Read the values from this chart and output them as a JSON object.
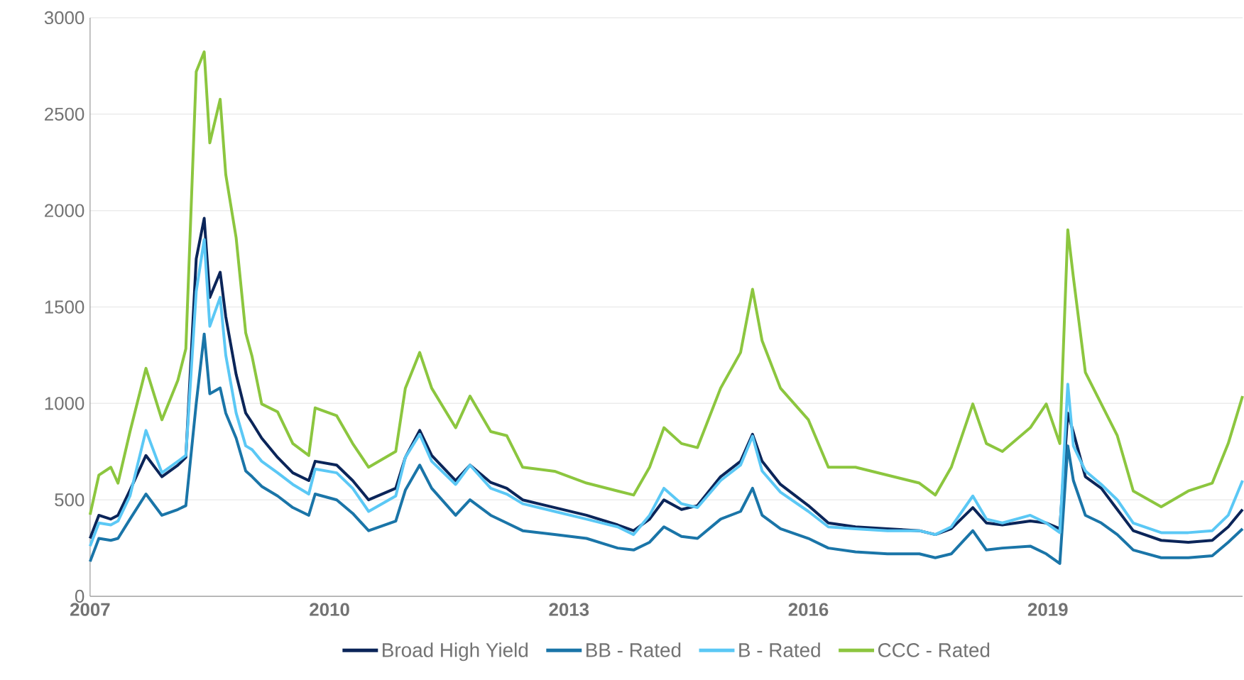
{
  "chart_data": {
    "type": "line",
    "x": [
      2007.0,
      2007.11,
      2007.26,
      2007.35,
      2007.5,
      2007.7,
      2007.9,
      2008.1,
      2008.2,
      2008.33,
      2008.43,
      2008.5,
      2008.63,
      2008.7,
      2008.83,
      2008.95,
      2009.03,
      2009.15,
      2009.35,
      2009.54,
      2009.74,
      2009.82,
      2010.09,
      2010.29,
      2010.49,
      2010.83,
      2010.95,
      2011.13,
      2011.28,
      2011.58,
      2011.76,
      2012.02,
      2012.22,
      2012.42,
      2012.82,
      2013.22,
      2013.61,
      2013.81,
      2014.01,
      2014.19,
      2014.41,
      2014.61,
      2014.9,
      2015.15,
      2015.3,
      2015.42,
      2015.65,
      2016.0,
      2016.25,
      2016.59,
      2016.99,
      2017.39,
      2017.59,
      2017.79,
      2018.06,
      2018.23,
      2018.43,
      2018.78,
      2018.98,
      2019.15,
      2019.25,
      2019.32,
      2019.47,
      2019.67,
      2019.87,
      2020.07,
      2020.42,
      2020.76,
      2021.06,
      2021.26,
      2021.44
    ],
    "series": [
      {
        "name": "Broad High Yield",
        "color": "#0b2559",
        "values": [
          300,
          420,
          400,
          420,
          550,
          730,
          620,
          680,
          720,
          1750,
          1960,
          1550,
          1680,
          1450,
          1150,
          950,
          900,
          820,
          720,
          640,
          600,
          700,
          680,
          600,
          500,
          560,
          720,
          860,
          730,
          600,
          680,
          590,
          560,
          500,
          460,
          420,
          370,
          340,
          400,
          500,
          450,
          470,
          620,
          700,
          840,
          700,
          580,
          470,
          380,
          360,
          350,
          340,
          320,
          350,
          460,
          380,
          370,
          390,
          380,
          350,
          950,
          850,
          620,
          560,
          450,
          340,
          290,
          280,
          290,
          360,
          450
        ]
      },
      {
        "name": "BB - Rated",
        "color": "#1a75a8",
        "values": [
          180,
          300,
          290,
          300,
          400,
          530,
          420,
          450,
          470,
          1000,
          1360,
          1050,
          1080,
          950,
          820,
          650,
          620,
          570,
          520,
          460,
          420,
          530,
          500,
          430,
          340,
          390,
          550,
          680,
          560,
          420,
          500,
          420,
          380,
          340,
          320,
          300,
          250,
          240,
          280,
          360,
          310,
          300,
          400,
          440,
          560,
          420,
          350,
          300,
          250,
          230,
          220,
          220,
          200,
          220,
          340,
          240,
          250,
          260,
          220,
          170,
          780,
          600,
          420,
          380,
          320,
          240,
          200,
          200,
          210,
          280,
          350
        ]
      },
      {
        "name": "B - Rated",
        "color": "#5bc8f5",
        "values": [
          260,
          380,
          370,
          390,
          520,
          860,
          640,
          700,
          730,
          1580,
          1850,
          1400,
          1550,
          1250,
          950,
          780,
          760,
          700,
          640,
          580,
          530,
          660,
          640,
          560,
          440,
          520,
          720,
          840,
          700,
          580,
          680,
          560,
          530,
          480,
          440,
          400,
          360,
          320,
          420,
          560,
          480,
          460,
          600,
          680,
          830,
          650,
          540,
          440,
          360,
          350,
          340,
          340,
          320,
          360,
          520,
          400,
          380,
          420,
          380,
          330,
          1100,
          780,
          650,
          580,
          500,
          380,
          330,
          330,
          340,
          420,
          600
        ]
      },
      {
        "name": "CCC - Rated",
        "color": "#8cc63f",
        "values": [
          423,
          628,
          669,
          587,
          853,
          1182,
          915,
          1120,
          1284,
          2720,
          2823,
          2351,
          2577,
          2187,
          1859,
          1366,
          1243,
          997,
          956,
          792,
          730,
          977,
          936,
          792,
          669,
          751,
          1079,
          1264,
          1079,
          874,
          1038,
          854,
          833,
          669,
          648,
          587,
          546,
          525,
          669,
          874,
          792,
          771,
          1079,
          1264,
          1592,
          1325,
          1079,
          915,
          669,
          669,
          628,
          587,
          525,
          669,
          997,
          792,
          751,
          874,
          997,
          792,
          1900,
          1654,
          1161,
          997,
          833,
          546,
          464,
          546,
          587,
          792,
          1038
        ]
      }
    ],
    "xlim": [
      2007,
      2021.44
    ],
    "xticks": [
      2007,
      2010,
      2013,
      2016,
      2019
    ],
    "ylim": [
      0,
      3000
    ],
    "yticks": [
      0,
      500,
      1000,
      1500,
      2000,
      2500,
      3000
    ],
    "grid": "y",
    "legend": "bottom",
    "line_style": "solid",
    "marker": "none"
  }
}
